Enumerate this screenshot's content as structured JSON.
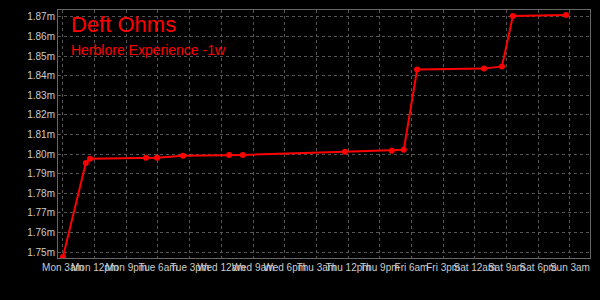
{
  "chart_data": {
    "type": "line",
    "title": "Deft Ohms",
    "subtitle": "Herblore Experience -1w",
    "x": [
      3,
      9.5,
      10.7,
      26.6,
      29.7,
      37.1,
      50.2,
      54.1,
      83.1,
      96.4,
      99.8,
      103.6,
      122.6,
      127.7,
      130.8,
      145.9
    ],
    "values": [
      1.7475,
      1.7955,
      1.7976,
      1.7981,
      1.7981,
      1.7991,
      1.7996,
      1.7996,
      1.8012,
      1.8017,
      1.8022,
      1.8431,
      1.8436,
      1.8447,
      1.8705,
      1.871
    ],
    "color": "#ff0000",
    "marker": "circle",
    "line_style": "solid",
    "grid": true,
    "xlim": [
      1.6,
      152.7
    ],
    "xticks": [
      {
        "value": 3,
        "label": "Mon 3am"
      },
      {
        "value": 12,
        "label": "Mon 12pm"
      },
      {
        "value": 21,
        "label": "Mon 9pm"
      },
      {
        "value": 30,
        "label": "Tue 6am"
      },
      {
        "value": 39,
        "label": "Tue 3pm"
      },
      {
        "value": 48,
        "label": "Wed 12am"
      },
      {
        "value": 57,
        "label": "Wed 9am"
      },
      {
        "value": 66,
        "label": "Wed 6pm"
      },
      {
        "value": 75,
        "label": "Thu 3am"
      },
      {
        "value": 84,
        "label": "Thu 12pm"
      },
      {
        "value": 93,
        "label": "Thu 9pm"
      },
      {
        "value": 102,
        "label": "Fri 6am"
      },
      {
        "value": 111,
        "label": "Fri 3pm"
      },
      {
        "value": 120,
        "label": "Sat 12am"
      },
      {
        "value": 129,
        "label": "Sat 9am"
      },
      {
        "value": 138,
        "label": "Sat 6pm"
      },
      {
        "value": 147,
        "label": "Sun 3am"
      }
    ],
    "ylim": [
      1.747,
      1.8735
    ],
    "yticks": [
      {
        "value": 1.75,
        "label": "1.75m"
      },
      {
        "value": 1.76,
        "label": "1.76m"
      },
      {
        "value": 1.77,
        "label": "1.77m"
      },
      {
        "value": 1.78,
        "label": "1.78m"
      },
      {
        "value": 1.79,
        "label": "1.79m"
      },
      {
        "value": 1.8,
        "label": "1.80m"
      },
      {
        "value": 1.81,
        "label": "1.81m"
      },
      {
        "value": 1.82,
        "label": "1.82m"
      },
      {
        "value": 1.83,
        "label": "1.83m"
      },
      {
        "value": 1.84,
        "label": "1.84m"
      },
      {
        "value": 1.85,
        "label": "1.85m"
      },
      {
        "value": 1.86,
        "label": "1.86m"
      },
      {
        "value": 1.87,
        "label": "1.87m"
      }
    ]
  }
}
